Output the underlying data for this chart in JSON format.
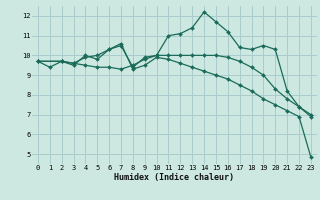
{
  "xlabel": "Humidex (Indice chaleur)",
  "bg_color": "#cce8e0",
  "grid_color": "#aacccc",
  "line_color": "#1a6b5a",
  "xlim": [
    -0.5,
    23.5
  ],
  "ylim": [
    4.5,
    12.5
  ],
  "yticks": [
    5,
    6,
    7,
    8,
    9,
    10,
    11,
    12
  ],
  "xticks": [
    0,
    1,
    2,
    3,
    4,
    5,
    6,
    7,
    8,
    9,
    10,
    11,
    12,
    13,
    14,
    15,
    16,
    17,
    18,
    19,
    20,
    21,
    22,
    23
  ],
  "lines": [
    {
      "x": [
        0,
        1,
        2,
        3,
        4,
        5,
        6,
        7,
        8,
        9,
        10,
        11,
        12,
        13,
        14,
        15,
        16,
        17,
        18,
        19,
        20,
        21,
        22,
        23
      ],
      "y": [
        9.7,
        9.4,
        9.7,
        9.6,
        9.5,
        9.4,
        9.4,
        9.3,
        9.5,
        9.8,
        10.0,
        10.0,
        10.0,
        10.0,
        10.0,
        10.0,
        9.9,
        9.7,
        9.4,
        9.0,
        8.3,
        7.8,
        7.4,
        7.0
      ]
    },
    {
      "x": [
        0,
        2,
        3,
        4,
        5,
        6,
        7,
        8,
        9,
        10,
        11,
        12,
        13,
        14,
        15,
        16,
        17,
        18,
        19,
        20,
        21,
        22,
        23
      ],
      "y": [
        9.7,
        9.7,
        9.6,
        9.9,
        10.0,
        10.3,
        10.5,
        9.4,
        9.9,
        10.0,
        11.0,
        11.1,
        11.4,
        12.2,
        11.7,
        11.2,
        10.4,
        10.3,
        10.5,
        10.3,
        8.2,
        7.4,
        6.9
      ]
    },
    {
      "x": [
        0,
        2,
        3,
        4,
        5,
        6,
        7,
        8,
        9,
        10,
        11,
        12,
        13,
        14,
        15,
        16,
        17,
        18,
        19,
        20,
        21,
        22,
        23
      ],
      "y": [
        9.7,
        9.7,
        9.5,
        10.0,
        9.8,
        10.3,
        10.6,
        9.3,
        9.5,
        9.9,
        9.8,
        9.6,
        9.4,
        9.2,
        9.0,
        8.8,
        8.5,
        8.2,
        7.8,
        7.5,
        7.2,
        6.9,
        4.85
      ]
    }
  ]
}
